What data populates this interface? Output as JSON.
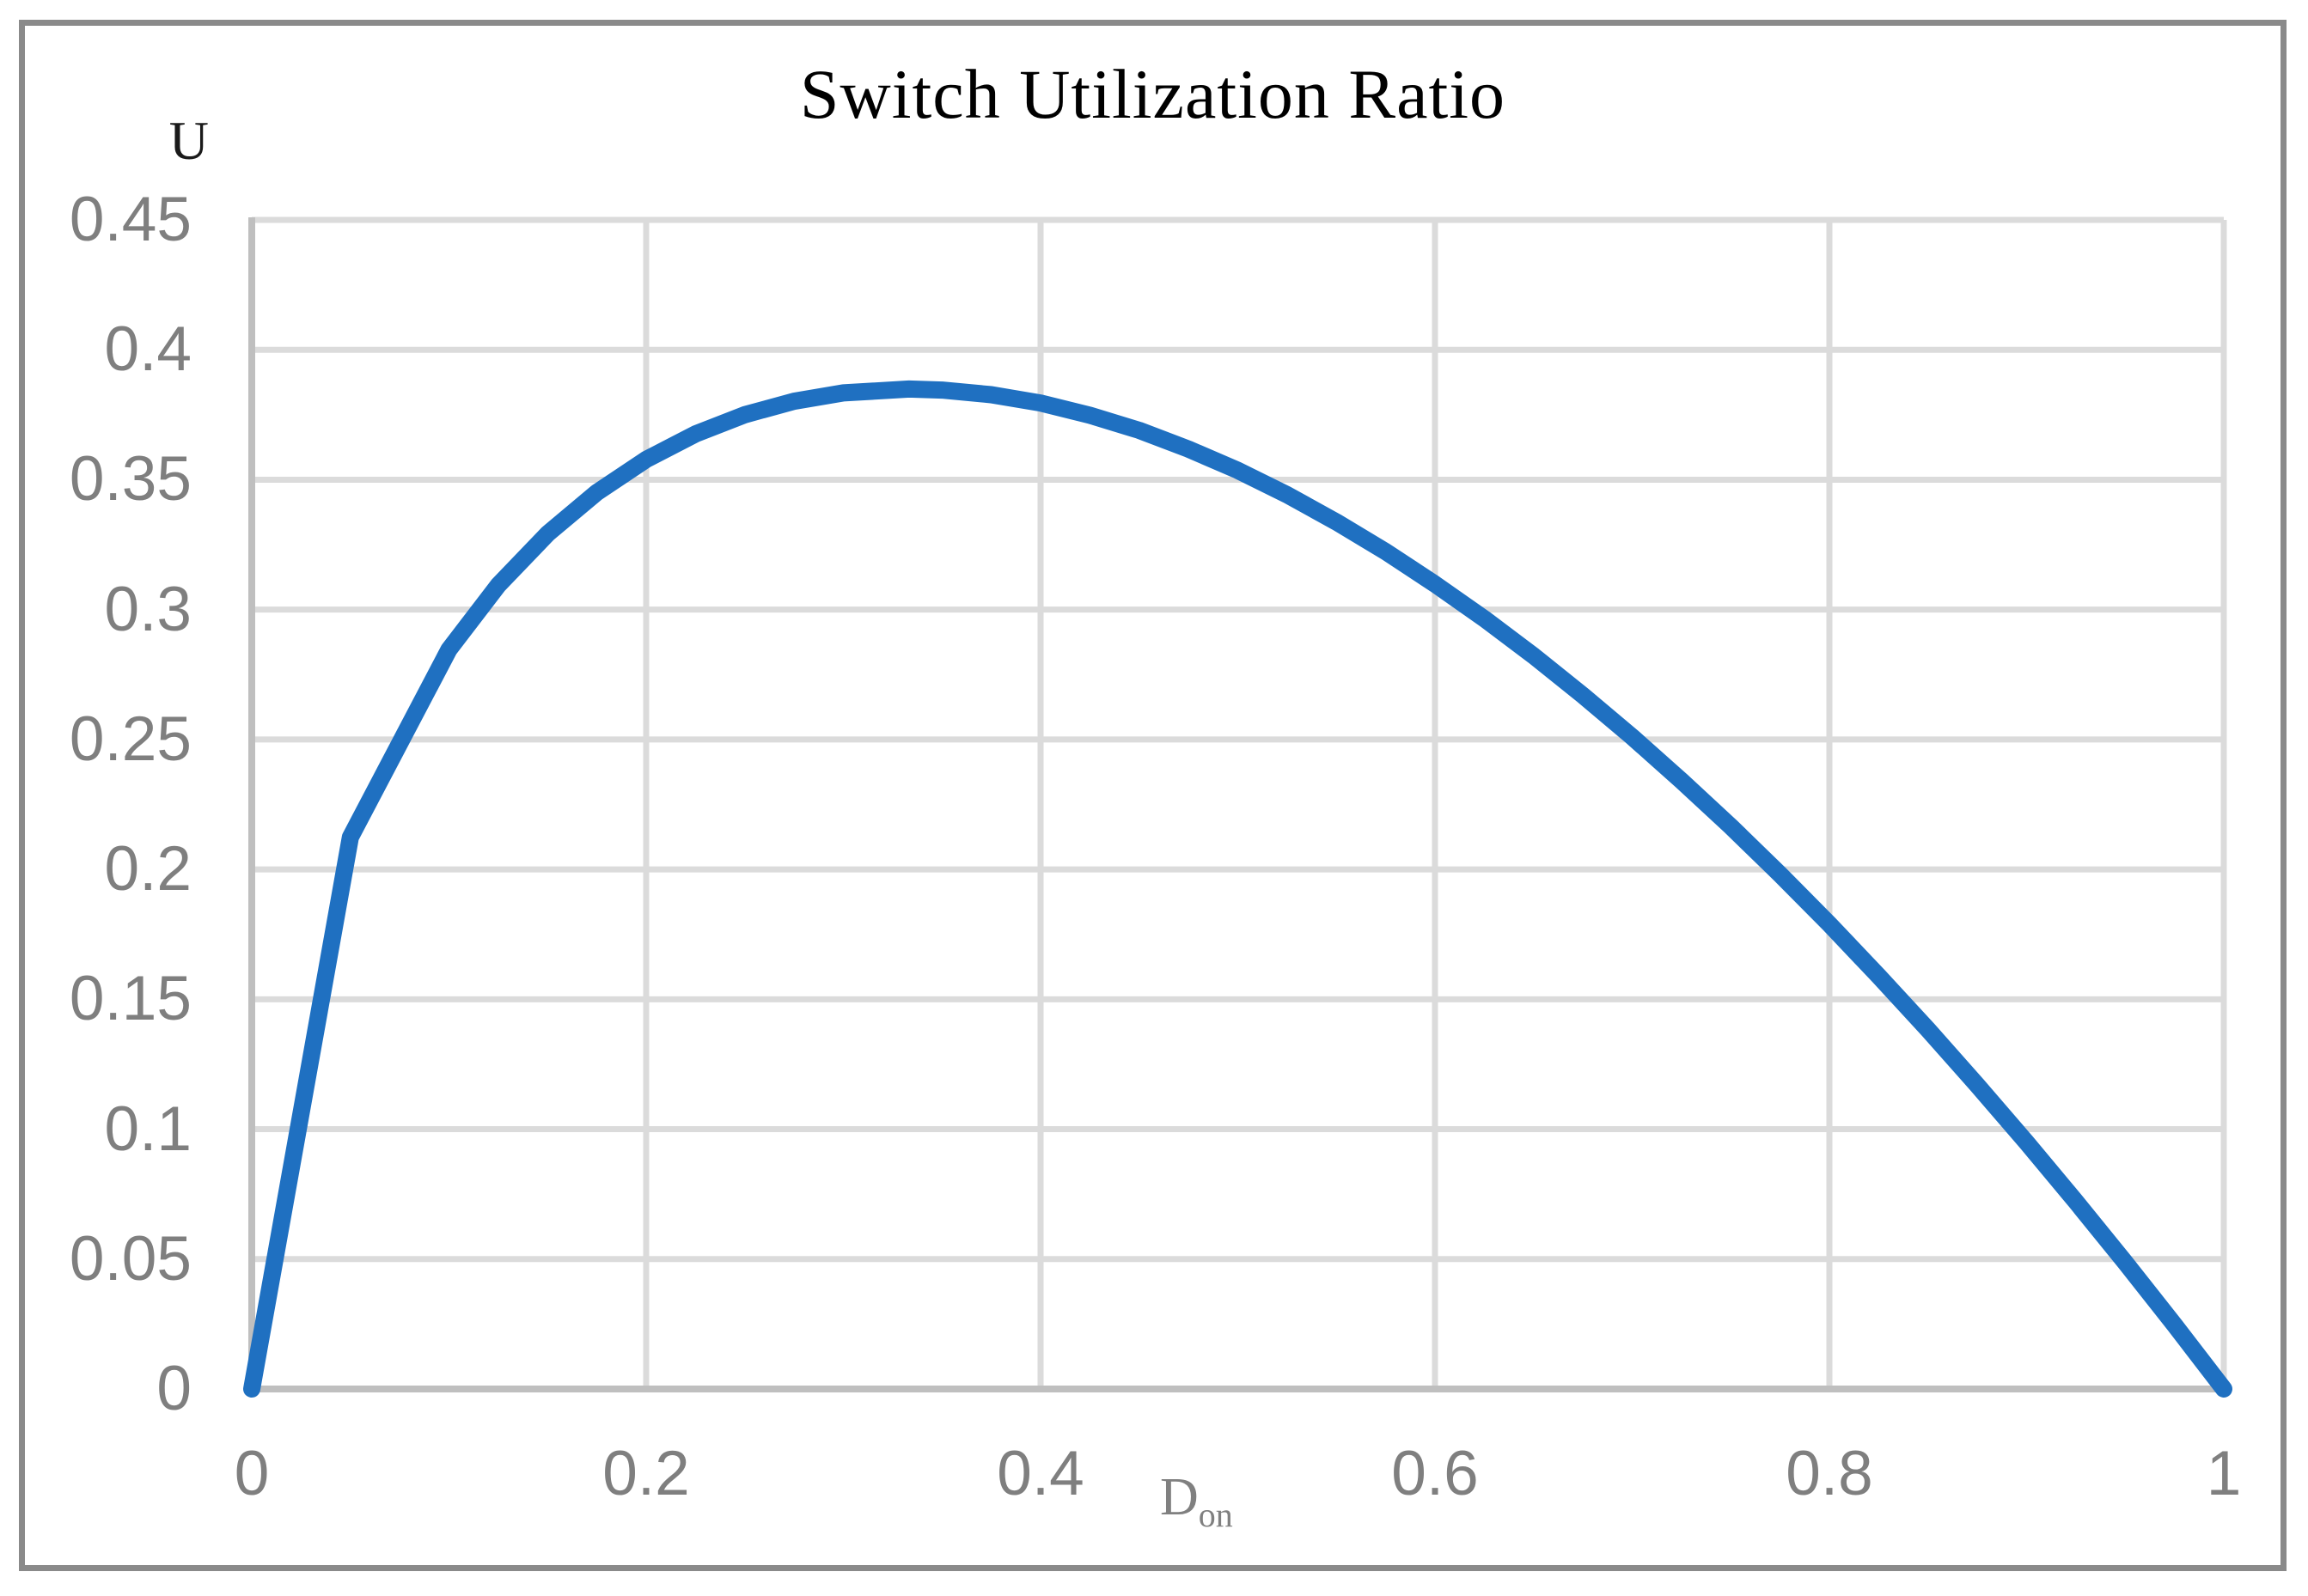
{
  "title": "Switch Utilization Ratio",
  "y_axis": {
    "title": "U",
    "tick_labels": [
      "0.45",
      "0.4",
      "0.35",
      "0.3",
      "0.25",
      "0.2",
      "0.15",
      "0.1",
      "0.05",
      "0"
    ],
    "tick_values": [
      0.45,
      0.4,
      0.35,
      0.3,
      0.25,
      0.2,
      0.15,
      0.1,
      0.05,
      0
    ],
    "min": 0,
    "max": 0.45
  },
  "x_axis": {
    "title_main": "D",
    "title_subscript": "on",
    "tick_labels": [
      "0",
      "0.2",
      "0.4",
      "0.6",
      "0.8",
      "1"
    ],
    "tick_values": [
      0,
      0.2,
      0.4,
      0.6,
      0.8,
      1
    ],
    "min": 0,
    "max": 1
  },
  "colors": {
    "curve": "#1F70C1",
    "gridline": "#DBDBDB",
    "axis_line": "#BFBFBF",
    "tick_text": "#7F7F7F",
    "title_text": "#000000",
    "border": "#8A8A8A",
    "background": "#FFFFFF"
  },
  "chart_data": {
    "type": "line",
    "title": "Switch Utilization Ratio",
    "xlabel": "Don",
    "ylabel": "U",
    "xlim": [
      0,
      1
    ],
    "ylim": [
      0,
      0.45
    ],
    "grid": true,
    "legend": "none",
    "peak": {
      "x": 0.333,
      "y": 0.385
    },
    "series": [
      {
        "name": "U",
        "points": [
          [
            0,
            0
          ],
          [
            0.05,
            0.2124
          ],
          [
            0.1,
            0.2846
          ],
          [
            0.125,
            0.3094
          ],
          [
            0.15,
            0.3292
          ],
          [
            0.175,
            0.3451
          ],
          [
            0.2,
            0.3578
          ],
          [
            0.225,
            0.3676
          ],
          [
            0.25,
            0.375
          ],
          [
            0.275,
            0.3802
          ],
          [
            0.3,
            0.3834
          ],
          [
            0.3333,
            0.3849
          ],
          [
            0.35,
            0.3845
          ],
          [
            0.375,
            0.3827
          ],
          [
            0.4,
            0.3795
          ],
          [
            0.425,
            0.3748
          ],
          [
            0.45,
            0.369
          ],
          [
            0.475,
            0.3618
          ],
          [
            0.5,
            0.3536
          ],
          [
            0.525,
            0.3442
          ],
          [
            0.55,
            0.3337
          ],
          [
            0.575,
            0.3223
          ],
          [
            0.6,
            0.3098
          ],
          [
            0.625,
            0.2965
          ],
          [
            0.65,
            0.2822
          ],
          [
            0.675,
            0.267
          ],
          [
            0.7,
            0.251
          ],
          [
            0.725,
            0.2341
          ],
          [
            0.75,
            0.2165
          ],
          [
            0.775,
            0.1981
          ],
          [
            0.8,
            0.1789
          ],
          [
            0.825,
            0.1589
          ],
          [
            0.85,
            0.1383
          ],
          [
            0.875,
            0.1169
          ],
          [
            0.9,
            0.0949
          ],
          [
            0.925,
            0.0721
          ],
          [
            0.95,
            0.0487
          ],
          [
            0.975,
            0.0247
          ],
          [
            1,
            0
          ]
        ]
      }
    ]
  }
}
